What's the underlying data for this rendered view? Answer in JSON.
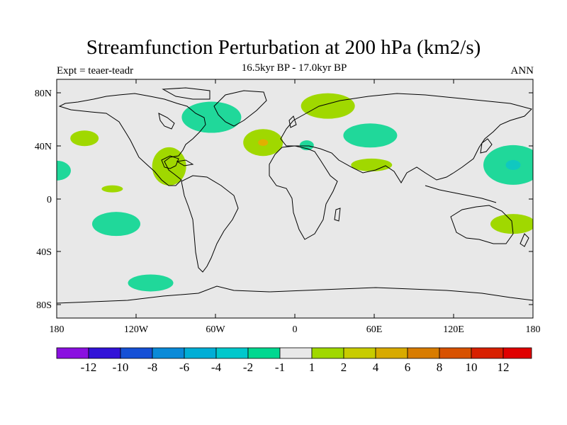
{
  "title": "Streamfunction Perturbation at 200 hPa (km2/s)",
  "experiment": "Expt = teaer-teadr",
  "period": "16.5kyr BP - 17.0kyr BP",
  "season": "ANN",
  "lat_ticks": [
    "80N",
    "40N",
    "0",
    "40S",
    "80S"
  ],
  "lon_ticks": [
    "180",
    "120W",
    "60W",
    "0",
    "60E",
    "120E",
    "180"
  ],
  "colorbar": {
    "labels": [
      "-12",
      "-10",
      "-8",
      "-6",
      "-4",
      "-2",
      "-1",
      "1",
      "2",
      "4",
      "6",
      "8",
      "10",
      "12"
    ],
    "colors": [
      "#8a10e0",
      "#3212d8",
      "#1650d6",
      "#0a8ad8",
      "#00aed6",
      "#00c8cc",
      "#00d890",
      "#e8e8e8",
      "#a0d800",
      "#c8cc00",
      "#d8aa00",
      "#d87c00",
      "#d85200",
      "#d82000",
      "#e00000"
    ]
  },
  "colors": {
    "background": "#e8e8e8",
    "neg_light": "#20d89a",
    "neg_mid": "#10c8c0",
    "pos_light": "#a0d800",
    "pos_mid": "#e0b000"
  },
  "anomalies": [
    {
      "lon": -159,
      "lat": 43,
      "value": 1.5
    },
    {
      "lon": -180,
      "lat": 20,
      "value": -1.5
    },
    {
      "lon": 180,
      "lat": 20,
      "value": -1.5
    },
    {
      "lon": -138,
      "lat": 7,
      "value": 1.5
    },
    {
      "lon": -95,
      "lat": 23,
      "value": 1.5
    },
    {
      "lon": -63,
      "lat": 58,
      "value": -1.5
    },
    {
      "lon": -24,
      "lat": 40,
      "value": 2.5
    },
    {
      "lon": 9,
      "lat": 38,
      "value": -1.5
    },
    {
      "lon": 25,
      "lat": 66,
      "value": 1.5
    },
    {
      "lon": 57,
      "lat": 45,
      "value": -1.5
    },
    {
      "lon": 58,
      "lat": 24,
      "value": 1.5
    },
    {
      "lon": 165,
      "lat": 24,
      "value": -2.5
    },
    {
      "lon": 165,
      "lat": -18,
      "value": 1.5
    },
    {
      "lon": -135,
      "lat": -18,
      "value": -1.5
    },
    {
      "lon": -109,
      "lat": -60,
      "value": -1.5
    }
  ]
}
